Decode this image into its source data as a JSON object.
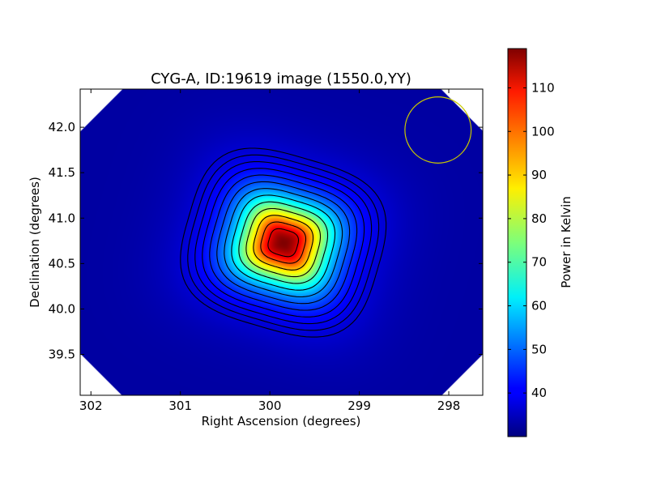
{
  "chart_data": {
    "type": "heatmap",
    "title": "CYG-A, ID:19619 image (1550.0,YY)",
    "xlabel": "Right Ascension (degrees)",
    "ylabel": "Declination (degrees)",
    "xlim": [
      302.12,
      297.62
    ],
    "ylim": [
      39.05,
      42.42
    ],
    "x_inverted": true,
    "x_ticks": [
      302,
      301,
      300,
      299,
      298
    ],
    "y_ticks": [
      39.5,
      40.0,
      40.5,
      41.0,
      41.5,
      42.0
    ],
    "x_tick_labels": [
      "302",
      "301",
      "300",
      "299",
      "298"
    ],
    "y_tick_labels": [
      "39.5",
      "40.0",
      "40.5",
      "41.0",
      "41.5",
      "42.0"
    ],
    "source": {
      "ra": 299.85,
      "dec": 40.73,
      "peak": 119,
      "background": 33
    },
    "contour_count": 13,
    "beam_circle": {
      "ra": 298.12,
      "dec": 41.97,
      "radius_deg": 0.37,
      "color": "#c8c800"
    },
    "colormap": "jet",
    "grid": false,
    "colorbar": {
      "label": "Power in Kelvin",
      "range": [
        30,
        119
      ],
      "ticks": [
        40,
        50,
        60,
        70,
        80,
        90,
        100,
        110
      ],
      "tick_labels": [
        "40",
        "50",
        "60",
        "70",
        "80",
        "90",
        "100",
        "110"
      ]
    }
  }
}
